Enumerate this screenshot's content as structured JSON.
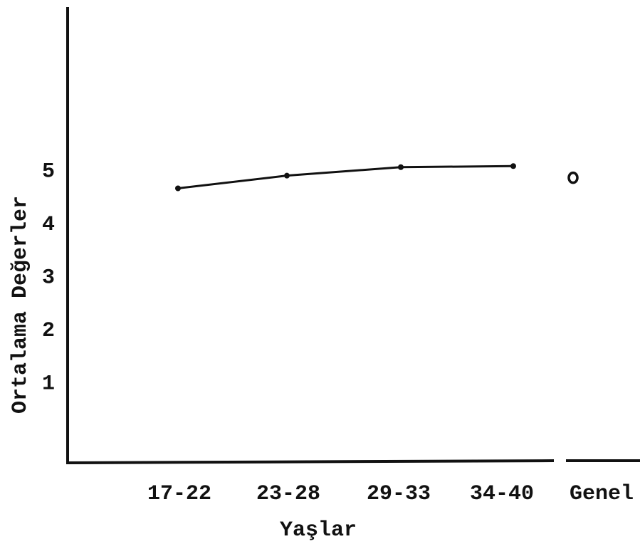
{
  "chart_data": {
    "type": "line",
    "categories": [
      "17-22",
      "23-28",
      "29-33",
      "34-40",
      "Genel"
    ],
    "series": [
      {
        "color": "#111111",
        "values": [
          4.68,
          4.92,
          5.08,
          5.1,
          null
        ]
      },
      {
        "color": "#111111",
        "marker": "o",
        "values": [
          null,
          null,
          null,
          null,
          4.88
        ]
      }
    ],
    "ylim": [
      -0.5,
      8.1
    ],
    "yticks": [
      1,
      2,
      3,
      4,
      5
    ],
    "x_label": "Yaşlar",
    "y_label": "Ortalama Değerler",
    "grid": false
  }
}
